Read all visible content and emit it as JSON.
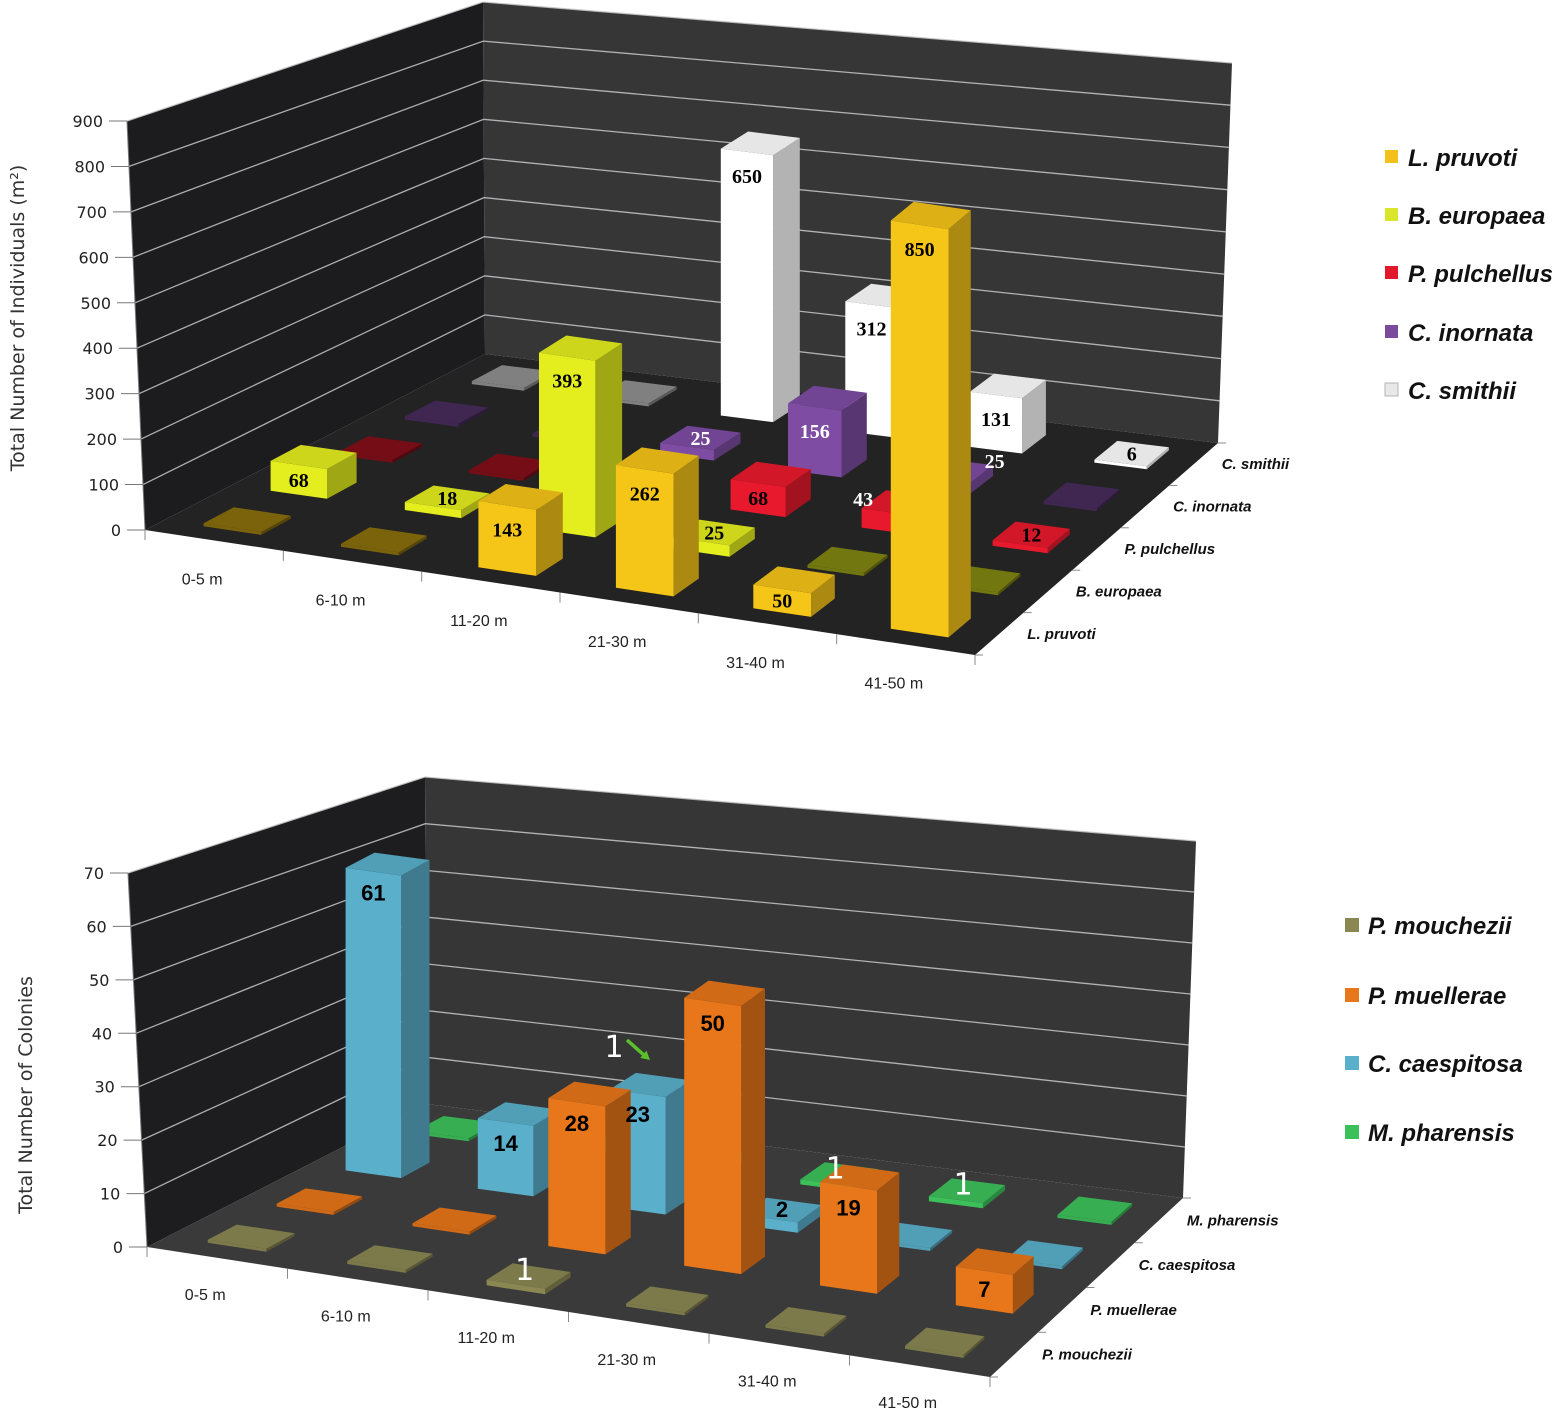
{
  "figure": {
    "top_chart": {
      "ylabel": "Total Number of Individuals (m²)",
      "legend": [
        {
          "label": "L. pruvoti",
          "color": "#F2C21A"
        },
        {
          "label": "B. europaea",
          "color": "#D9E62A"
        },
        {
          "label": "P. pulchellus",
          "color": "#E3182B"
        },
        {
          "label": "C. inornata",
          "color": "#7A4B9C"
        },
        {
          "label": "C. smithii",
          "color": "#E8E8E8"
        }
      ]
    },
    "bottom_chart": {
      "ylabel": "Total Number of Colonies",
      "legend": [
        {
          "label": "P. mouchezii",
          "color": "#8A8752"
        },
        {
          "label": "P. muellerae",
          "color": "#E8761A"
        },
        {
          "label": "C. caespitosa",
          "color": "#5AAFCB"
        },
        {
          "label": "M. pharensis",
          "color": "#3CC15A"
        }
      ]
    }
  },
  "chart_data": [
    {
      "type": "bar",
      "subtype": "3d-clustered-depth",
      "title": "",
      "xlabel": "",
      "ylabel": "Total Number of Individuals (m²)",
      "categories": [
        "0-5 m",
        "6-10 m",
        "11-20 m",
        "21-30 m",
        "31-40 m",
        "41-50 m"
      ],
      "ylim": [
        0,
        900
      ],
      "y_ticks": [
        0,
        100,
        200,
        300,
        400,
        500,
        600,
        700,
        800,
        900
      ],
      "grid": true,
      "legend_position": "right",
      "series": [
        {
          "name": "L. pruvoti",
          "color": "#F5C518",
          "label_color": "#000000",
          "values": [
            0,
            0,
            143,
            262,
            50,
            850
          ]
        },
        {
          "name": "B. europaea",
          "color": "#E4EE1E",
          "label_color": "#000000",
          "values": [
            68,
            18,
            393,
            25,
            0,
            0
          ]
        },
        {
          "name": "P. pulchellus",
          "color": "#E8192C",
          "label_color": "#000000",
          "label_colors": [
            "#000000",
            "#000000",
            "#000000",
            "#000000",
            "#FFFFFF",
            "#000000"
          ],
          "values": [
            0,
            0,
            0,
            68,
            43,
            12
          ]
        },
        {
          "name": "C. inornata",
          "color": "#7E4DA3",
          "label_color": "#FFFFFF",
          "values": [
            0,
            0,
            25,
            156,
            25,
            0
          ]
        },
        {
          "name": "C. smithii",
          "color": "#FFFFFF",
          "label_color": "#000000",
          "values": [
            0,
            0,
            650,
            312,
            131,
            6
          ]
        }
      ]
    },
    {
      "type": "bar",
      "subtype": "3d-clustered-depth",
      "title": "",
      "xlabel": "",
      "ylabel": "Total Number of Colonies",
      "categories": [
        "0-5 m",
        "6-10 m",
        "11-20 m",
        "21-30 m",
        "31-40 m",
        "41-50 m"
      ],
      "ylim": [
        0,
        70
      ],
      "y_ticks": [
        0,
        10,
        20,
        30,
        40,
        50,
        60,
        70
      ],
      "grid": true,
      "legend_position": "right",
      "series": [
        {
          "name": "P. mouchezii",
          "color": "#8A8752",
          "label_color": "#000000",
          "values": [
            0,
            0,
            1,
            0,
            0,
            0
          ]
        },
        {
          "name": "P. muellerae",
          "color": "#E8761A",
          "label_color": "#000000",
          "values": [
            0,
            0,
            28,
            50,
            19,
            7
          ]
        },
        {
          "name": "C. caespitosa",
          "color": "#5AAFCB",
          "label_color": "#000000",
          "values": [
            61,
            14,
            23,
            2,
            0,
            0
          ]
        },
        {
          "name": "M. pharensis",
          "color": "#3CC15A",
          "label_color": "#000000",
          "values": [
            0,
            0,
            1,
            1,
            1,
            0
          ]
        }
      ],
      "annotations": [
        {
          "text": "1",
          "series": "M. pharensis",
          "category": "11-20 m",
          "arrow_color": "#5CC02A"
        }
      ]
    }
  ]
}
